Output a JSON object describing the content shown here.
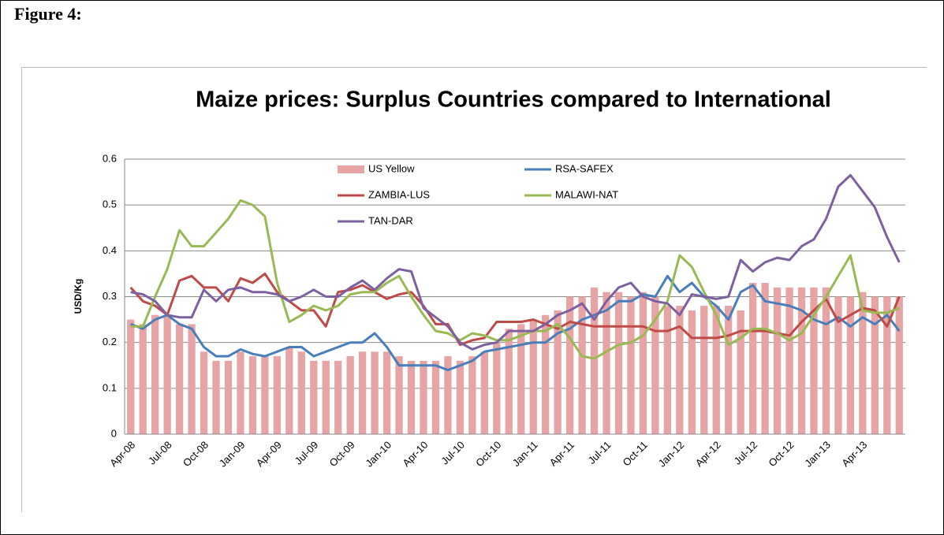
{
  "figure_label": "Figure 4:",
  "chart_data": {
    "type": "combo",
    "title": "Maize prices: Surplus Countries compared to International",
    "y_label": "USD/Kg",
    "categories": [
      "Apr-08",
      null,
      null,
      "Jul-08",
      null,
      null,
      "Oct-08",
      null,
      null,
      "Jan-09",
      null,
      null,
      "Apr-09",
      null,
      null,
      "Jul-09",
      null,
      null,
      "Oct-09",
      null,
      null,
      "Jan-10",
      null,
      null,
      "Apr-10",
      null,
      null,
      "Jul-10",
      null,
      null,
      "Oct-10",
      null,
      null,
      "Jan-11",
      null,
      null,
      "Apr-11",
      null,
      null,
      "Jul-11",
      null,
      null,
      "Oct-11",
      null,
      null,
      "Jan-12",
      null,
      null,
      "Apr-12",
      null,
      null,
      "Jul-12",
      null,
      null,
      "Oct-12",
      null,
      null,
      "Jan-13",
      null,
      null,
      "Apr-13",
      null,
      null,
      null
    ],
    "ylim": [
      0,
      0.6
    ],
    "yticks": [
      0,
      0.1,
      0.2,
      0.3,
      0.4,
      0.5,
      0.6
    ],
    "grid": true,
    "series": [
      {
        "name": "US Yellow",
        "type": "bar",
        "color": "#e6a5a4",
        "values": [
          0.25,
          0.24,
          0.26,
          0.26,
          0.24,
          0.24,
          0.18,
          0.16,
          0.16,
          0.18,
          0.17,
          0.17,
          0.17,
          0.19,
          0.18,
          0.16,
          0.16,
          0.16,
          0.17,
          0.18,
          0.18,
          0.18,
          0.17,
          0.16,
          0.16,
          0.16,
          0.17,
          0.16,
          0.17,
          0.18,
          0.2,
          0.23,
          0.24,
          0.25,
          0.26,
          0.27,
          0.3,
          0.3,
          0.32,
          0.31,
          0.31,
          0.3,
          0.31,
          0.3,
          0.28,
          0.28,
          0.27,
          0.28,
          0.28,
          0.28,
          0.27,
          0.33,
          0.33,
          0.32,
          0.32,
          0.32,
          0.32,
          0.32,
          0.3,
          0.3,
          0.31,
          0.3,
          0.3,
          0.3
        ]
      },
      {
        "name": "RSA-SAFEX",
        "type": "line",
        "color": "#4a7ebb",
        "values": [
          0.24,
          0.23,
          0.25,
          0.26,
          0.24,
          0.23,
          0.19,
          0.17,
          0.17,
          0.185,
          0.175,
          0.17,
          0.18,
          0.19,
          0.19,
          0.17,
          0.18,
          0.19,
          0.2,
          0.2,
          0.22,
          0.19,
          0.15,
          0.15,
          0.15,
          0.15,
          0.14,
          0.15,
          0.16,
          0.18,
          0.185,
          0.19,
          0.195,
          0.2,
          0.2,
          0.22,
          0.23,
          0.25,
          0.26,
          0.27,
          0.29,
          0.29,
          0.305,
          0.3,
          0.345,
          0.31,
          0.33,
          0.3,
          0.28,
          0.25,
          0.31,
          0.325,
          0.29,
          0.285,
          0.28,
          0.27,
          0.25,
          0.24,
          0.255,
          0.235,
          0.255,
          0.24,
          0.26,
          0.225
        ]
      },
      {
        "name": "ZAMBIA-LUS",
        "type": "line",
        "color": "#be4b48",
        "values": [
          0.32,
          0.29,
          0.28,
          0.26,
          0.335,
          0.345,
          0.32,
          0.32,
          0.29,
          0.34,
          0.33,
          0.35,
          0.31,
          0.29,
          0.27,
          0.27,
          0.235,
          0.31,
          0.315,
          0.325,
          0.31,
          0.295,
          0.305,
          0.31,
          0.28,
          0.24,
          0.24,
          0.195,
          0.205,
          0.21,
          0.245,
          0.245,
          0.245,
          0.25,
          0.24,
          0.23,
          0.245,
          0.24,
          0.235,
          0.235,
          0.235,
          0.235,
          0.235,
          0.225,
          0.225,
          0.235,
          0.21,
          0.21,
          0.21,
          0.215,
          0.225,
          0.225,
          0.225,
          0.22,
          0.215,
          0.245,
          0.27,
          0.295,
          0.245,
          0.26,
          0.275,
          0.27,
          0.235,
          0.3
        ]
      },
      {
        "name": "MALAWI-NAT",
        "type": "line",
        "color": "#98b954",
        "values": [
          0.235,
          0.235,
          0.3,
          0.36,
          0.445,
          0.41,
          0.41,
          0.44,
          0.47,
          0.51,
          0.5,
          0.475,
          0.33,
          0.245,
          0.26,
          0.28,
          0.27,
          0.28,
          0.305,
          0.31,
          0.31,
          0.33,
          0.345,
          0.3,
          0.26,
          0.225,
          0.22,
          0.205,
          0.22,
          0.215,
          0.205,
          0.205,
          0.215,
          0.225,
          0.225,
          0.24,
          0.21,
          0.17,
          0.165,
          0.18,
          0.195,
          0.2,
          0.215,
          0.25,
          0.29,
          0.39,
          0.365,
          0.31,
          0.26,
          0.195,
          0.21,
          0.23,
          0.23,
          0.22,
          0.205,
          0.22,
          0.26,
          0.3,
          0.345,
          0.39,
          0.27,
          0.265,
          0.265,
          0.275
        ]
      },
      {
        "name": "TAN-DAR",
        "type": "line",
        "color": "#7d60a0",
        "values": [
          0.31,
          0.305,
          0.29,
          0.26,
          0.255,
          0.255,
          0.315,
          0.29,
          0.315,
          0.32,
          0.31,
          0.31,
          0.305,
          0.29,
          0.3,
          0.315,
          0.3,
          0.3,
          0.32,
          0.335,
          0.315,
          0.34,
          0.36,
          0.355,
          0.275,
          0.255,
          0.235,
          0.2,
          0.185,
          0.195,
          0.2,
          0.225,
          0.225,
          0.225,
          0.24,
          0.26,
          0.27,
          0.285,
          0.25,
          0.29,
          0.32,
          0.33,
          0.3,
          0.29,
          0.285,
          0.26,
          0.305,
          0.3,
          0.295,
          0.3,
          0.38,
          0.355,
          0.375,
          0.385,
          0.38,
          0.41,
          0.425,
          0.47,
          0.54,
          0.565,
          0.53,
          0.495,
          0.43,
          0.375
        ]
      }
    ]
  }
}
